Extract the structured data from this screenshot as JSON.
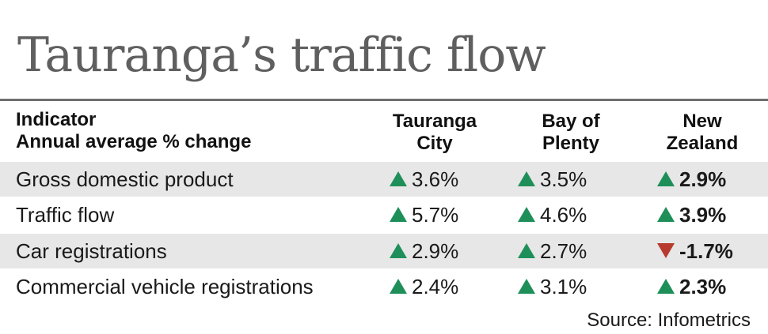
{
  "title": "Tauranga’s traffic flow",
  "chart_data": {
    "type": "table",
    "header": {
      "indicator_line1": "Indicator",
      "indicator_line2": "Annual average % change",
      "columns": [
        {
          "line1": "Tauranga",
          "line2": "City"
        },
        {
          "line1": "Bay of",
          "line2": "Plenty"
        },
        {
          "line1": "New",
          "line2": "Zealand"
        }
      ]
    },
    "rows": [
      {
        "label": "Gross domestic product",
        "cells": [
          {
            "text": "3.6%",
            "value": 3.6,
            "direction": "up"
          },
          {
            "text": "3.5%",
            "value": 3.5,
            "direction": "up"
          },
          {
            "text": "2.9%",
            "value": 2.9,
            "direction": "up"
          }
        ]
      },
      {
        "label": "Traffic flow",
        "cells": [
          {
            "text": "5.7%",
            "value": 5.7,
            "direction": "up"
          },
          {
            "text": "4.6%",
            "value": 4.6,
            "direction": "up"
          },
          {
            "text": "3.9%",
            "value": 3.9,
            "direction": "up"
          }
        ]
      },
      {
        "label": "Car registrations",
        "cells": [
          {
            "text": "2.9%",
            "value": 2.9,
            "direction": "up"
          },
          {
            "text": "2.7%",
            "value": 2.7,
            "direction": "up"
          },
          {
            "text": "-1.7%",
            "value": -1.7,
            "direction": "down"
          }
        ]
      },
      {
        "label": "Commercial vehicle registrations",
        "cells": [
          {
            "text": "2.4%",
            "value": 2.4,
            "direction": "up"
          },
          {
            "text": "3.1%",
            "value": 3.1,
            "direction": "up"
          },
          {
            "text": "2.3%",
            "value": 2.3,
            "direction": "up"
          }
        ]
      }
    ],
    "colors": {
      "up": "#1f8f5a",
      "down": "#b73a2e",
      "row_shade": "#e7e7e7"
    }
  },
  "source": "Source: Infometrics"
}
